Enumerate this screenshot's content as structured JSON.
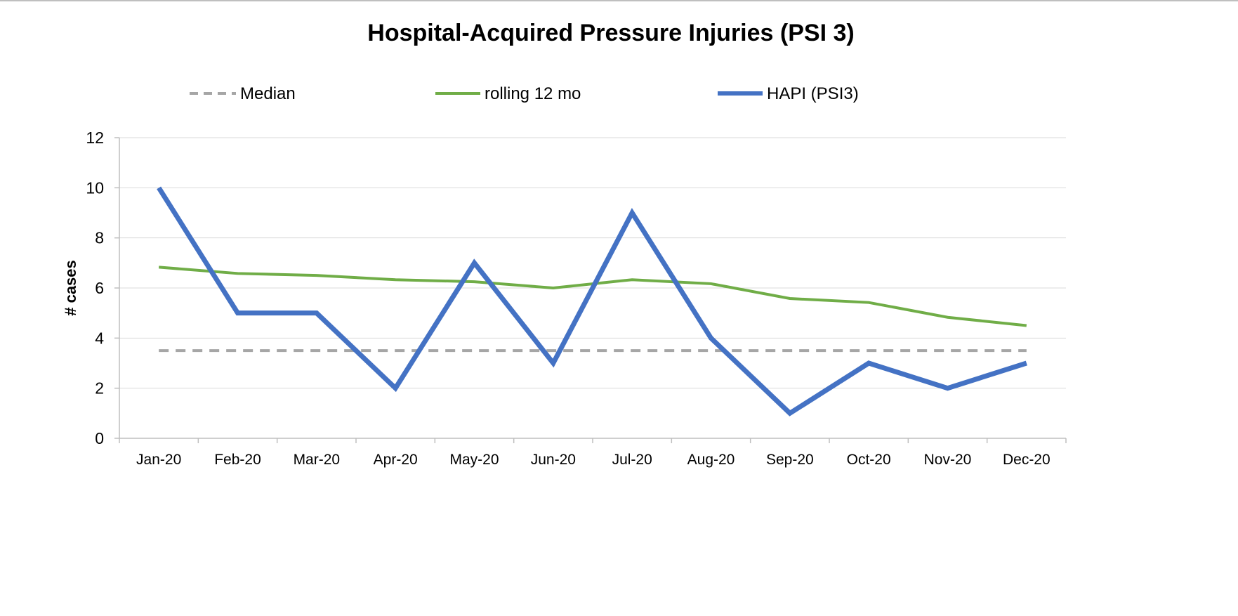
{
  "chart_data": {
    "type": "line",
    "title": "Hospital-Acquired Pressure Injuries (PSI 3)",
    "xlabel": "",
    "ylabel": "# cases",
    "categories": [
      "Jan-20",
      "Feb-20",
      "Mar-20",
      "Apr-20",
      "May-20",
      "Jun-20",
      "Jul-20",
      "Aug-20",
      "Sep-20",
      "Oct-20",
      "Nov-20",
      "Dec-20"
    ],
    "y_ticks": [
      "0",
      "2",
      "4",
      "6",
      "8",
      "10",
      "12"
    ],
    "ylim": [
      0,
      12
    ],
    "grid": true,
    "legend_position": "top",
    "series": [
      {
        "name": "Median",
        "style": "dashed",
        "color": "#a6a6a6",
        "values": [
          3.5,
          3.5,
          3.5,
          3.5,
          3.5,
          3.5,
          3.5,
          3.5,
          3.5,
          3.5,
          3.5,
          3.5
        ]
      },
      {
        "name": "rolling 12 mo",
        "style": "solid",
        "color": "#70ad47",
        "values": [
          6.83,
          6.58,
          6.5,
          6.33,
          6.25,
          6.0,
          6.33,
          6.17,
          5.58,
          5.42,
          4.83,
          4.5
        ]
      },
      {
        "name": "HAPI (PSI3)",
        "style": "solid",
        "color": "#4472c4",
        "values": [
          10,
          5,
          5,
          2,
          7,
          3,
          9,
          4,
          1,
          3,
          2,
          3
        ]
      }
    ]
  }
}
